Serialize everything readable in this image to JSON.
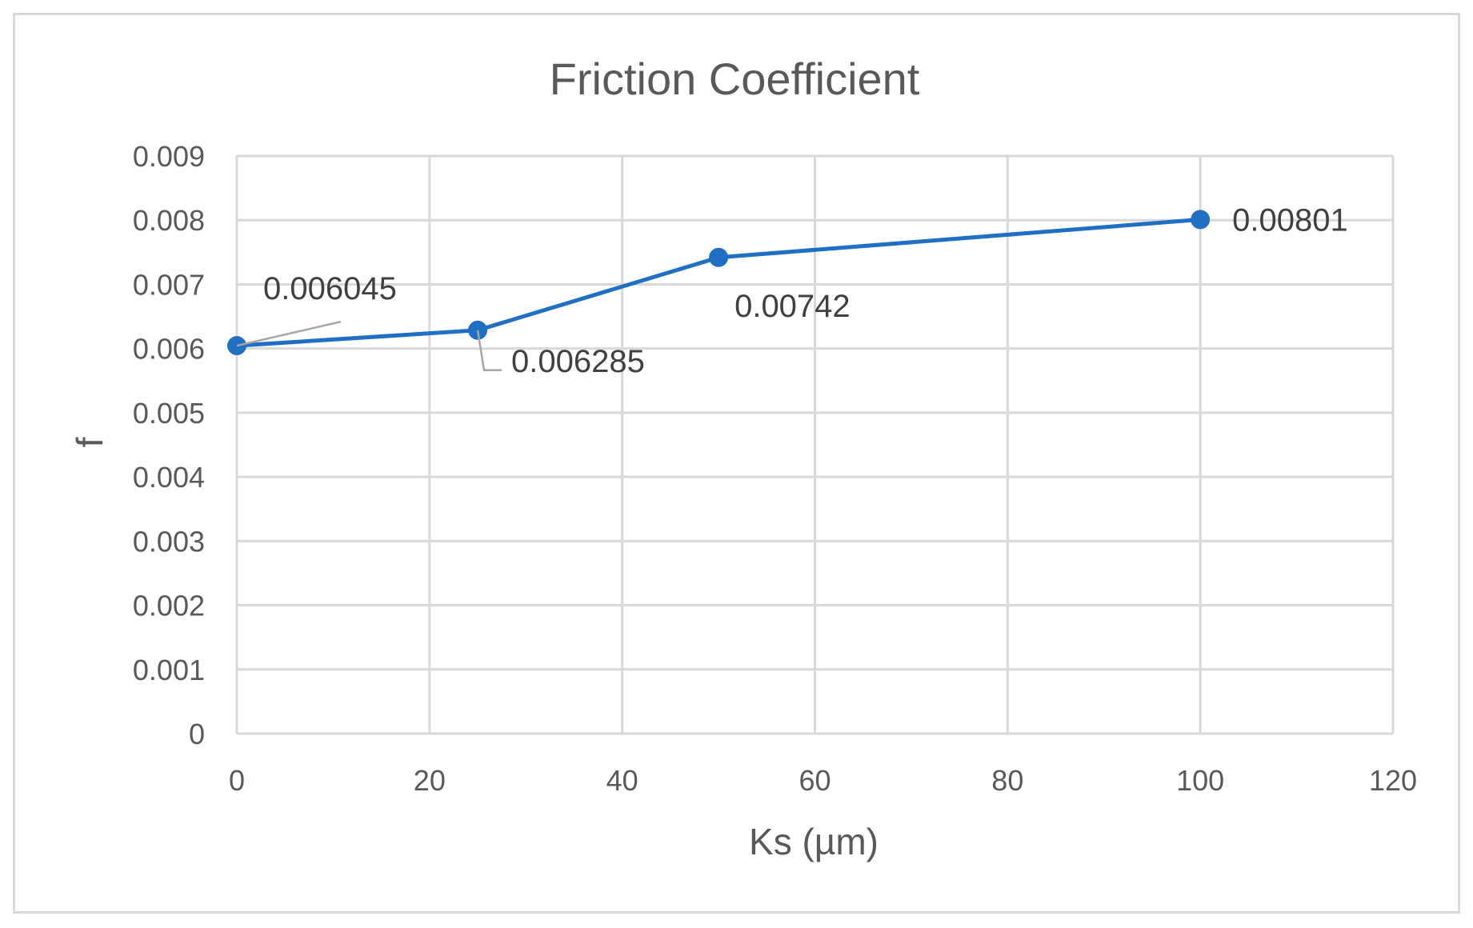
{
  "chart_data": {
    "type": "scatter",
    "title": "Friction Coefficient",
    "xlabel": "Ks (µm)",
    "ylabel": "f",
    "xlim": [
      0,
      120
    ],
    "ylim": [
      0,
      0.009
    ],
    "x_ticks": [
      "0",
      "20",
      "40",
      "60",
      "80",
      "100",
      "120"
    ],
    "y_ticks": [
      "0",
      "0.001",
      "0.002",
      "0.003",
      "0.004",
      "0.005",
      "0.006",
      "0.007",
      "0.008",
      "0.009"
    ],
    "grid": true,
    "legend": "none",
    "series": [
      {
        "x": [
          0,
          25,
          50,
          100
        ],
        "y": [
          0.006045,
          0.006285,
          0.00742,
          0.00801
        ],
        "data_labels": [
          "0.006045",
          "0.006285",
          "0.00742",
          "0.00801"
        ],
        "color": "#1f6fc5",
        "marker": "circle",
        "line": "straight"
      }
    ],
    "colors": {
      "grid": "#d9d9d9",
      "axis_text": "#595959",
      "data_label_text": "#404040",
      "leader_line": "#a6a6a6"
    }
  }
}
